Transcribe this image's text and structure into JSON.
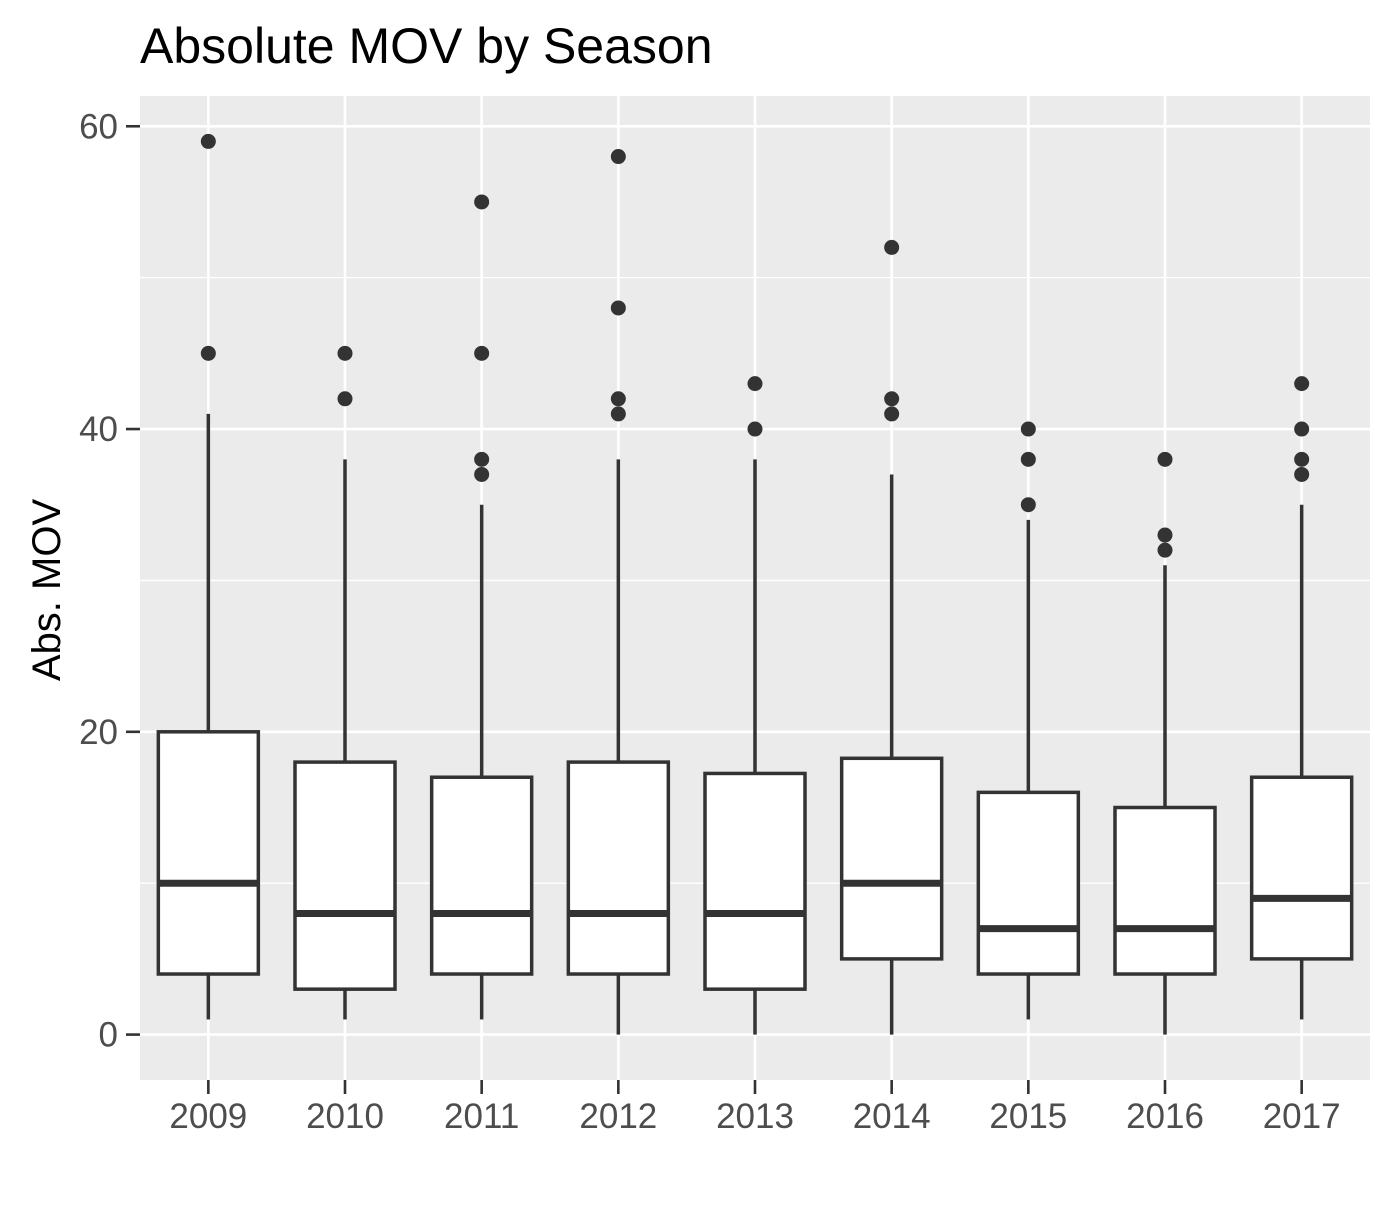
{
  "chart_data": {
    "type": "boxplot",
    "title": "Absolute MOV by Season",
    "xlabel": "",
    "ylabel": "Abs. MOV",
    "ylim": [
      -3,
      62
    ],
    "yticks": [
      0,
      20,
      40,
      60
    ],
    "grid": true,
    "colors": {
      "panel": "#ebebeb",
      "grid": "#ffffff",
      "box_fill": "#ffffff",
      "box_line": "#333333",
      "outlier": "#333333",
      "tick_text": "#4d4d4d"
    },
    "categories": [
      "2009",
      "2010",
      "2011",
      "2012",
      "2013",
      "2014",
      "2015",
      "2016",
      "2017"
    ],
    "boxes": [
      {
        "category": "2009",
        "whisker_low": 1,
        "q1": 4,
        "median": 10,
        "q3": 20,
        "whisker_high": 41,
        "outliers": [
          45,
          59
        ]
      },
      {
        "category": "2010",
        "whisker_low": 1,
        "q1": 3,
        "median": 8,
        "q3": 18,
        "whisker_high": 38,
        "outliers": [
          42,
          45
        ]
      },
      {
        "category": "2011",
        "whisker_low": 1,
        "q1": 4,
        "median": 8,
        "q3": 17,
        "whisker_high": 35,
        "outliers": [
          37,
          38,
          45,
          55
        ]
      },
      {
        "category": "2012",
        "whisker_low": 0,
        "q1": 4,
        "median": 8,
        "q3": 18,
        "whisker_high": 38,
        "outliers": [
          41,
          42,
          48,
          58
        ]
      },
      {
        "category": "2013",
        "whisker_low": 0,
        "q1": 3,
        "median": 8,
        "q3": 17.25,
        "whisker_high": 38,
        "outliers": [
          40,
          43
        ]
      },
      {
        "category": "2014",
        "whisker_low": 0,
        "q1": 5,
        "median": 10,
        "q3": 18.25,
        "whisker_high": 37,
        "outliers": [
          41,
          42,
          52
        ]
      },
      {
        "category": "2015",
        "whisker_low": 1,
        "q1": 4,
        "median": 7,
        "q3": 16,
        "whisker_high": 34,
        "outliers": [
          35,
          38,
          40
        ]
      },
      {
        "category": "2016",
        "whisker_low": 0,
        "q1": 4,
        "median": 7,
        "q3": 15,
        "whisker_high": 31,
        "outliers": [
          32,
          33,
          38
        ]
      },
      {
        "category": "2017",
        "whisker_low": 1,
        "q1": 5,
        "median": 9,
        "q3": 17,
        "whisker_high": 35,
        "outliers": [
          37,
          38,
          40,
          43
        ]
      }
    ]
  }
}
